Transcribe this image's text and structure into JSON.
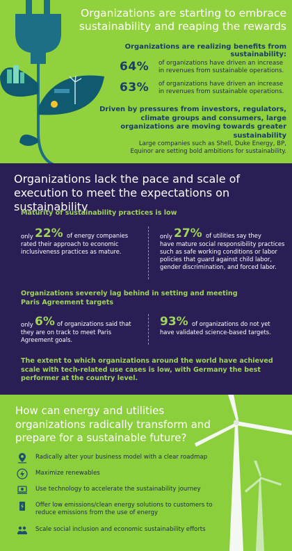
{
  "section1": {
    "title": "Organizations are starting to embrace sustainability and reaping the rewards",
    "subtitle": "Organizations are realizing benefits from sustainability:",
    "stats": [
      {
        "value": "64%",
        "text": "of organizations have driven  an increase in revenues from sustainable operations."
      },
      {
        "value": "63%",
        "text": "of organizations have driven  an increase in revenues from sustainable operations."
      }
    ],
    "driven": "Driven by pressures from investors, regulators, climate groups and consumers, large organizations are moving towards greater sustainability",
    "large": "Large companies such as Shell, Duke Energy, BP,  Equinor are setting bold ambitions for sustainability."
  },
  "section2": {
    "title": "Organizations lack the pace and scale of execution to meet the expectations on sustainability",
    "maturity_heading": "Maturity of sustainability practices is low",
    "maturity": [
      {
        "prefix": "only",
        "value": "22%",
        "text_inline": "of energy companies",
        "text": "rated their approach to economic inclusiveness practices as mature."
      },
      {
        "prefix": "only",
        "value": "27%",
        "text_inline": "of utilities say they",
        "text": "have mature  social responsibility practices such  as safe working conditions or labor policies that guard against child labor, gender discrimination, and forced labor."
      }
    ],
    "paris_heading": "Organizations severely lag behind in setting  and meeting Paris Agreement targets",
    "paris": [
      {
        "prefix": "only",
        "value": "6%",
        "text_inline": "of organizations said that",
        "text": "they are on  track to meet Paris Agreement goals."
      },
      {
        "prefix": "",
        "value": "93%",
        "text_inline": "of organizations do not yet",
        "text": "have validated science-based targets."
      }
    ],
    "scale": "The extent to which organizations around the world  have achieved scale with tech-related use cases is low, with Germany the best performer at the country level."
  },
  "section3": {
    "title": "How can energy and utilities organizations radically transform and prepare for a sustainable future?",
    "items": [
      {
        "icon": "roadmap-pin-icon",
        "label": "Radically alter your business model with a clear roadmap"
      },
      {
        "icon": "lightning-icon",
        "label": "Maximize renewables"
      },
      {
        "icon": "technology-gears-icon",
        "label": "Use technology to accelerate the sustainability journey"
      },
      {
        "icon": "clean-energy-icon",
        "label": "Offer low emissions/clean energy solutions to customers to reduce emissions from the use of energy"
      },
      {
        "icon": "social-inclusion-icon",
        "label": "Scale social inclusion and economic sustainability efforts"
      }
    ]
  },
  "colors": {
    "green": "#92d13e",
    "navy": "#2a1e55",
    "dark_blue_text": "#173d6b",
    "light_green_text": "#9fd55a"
  }
}
